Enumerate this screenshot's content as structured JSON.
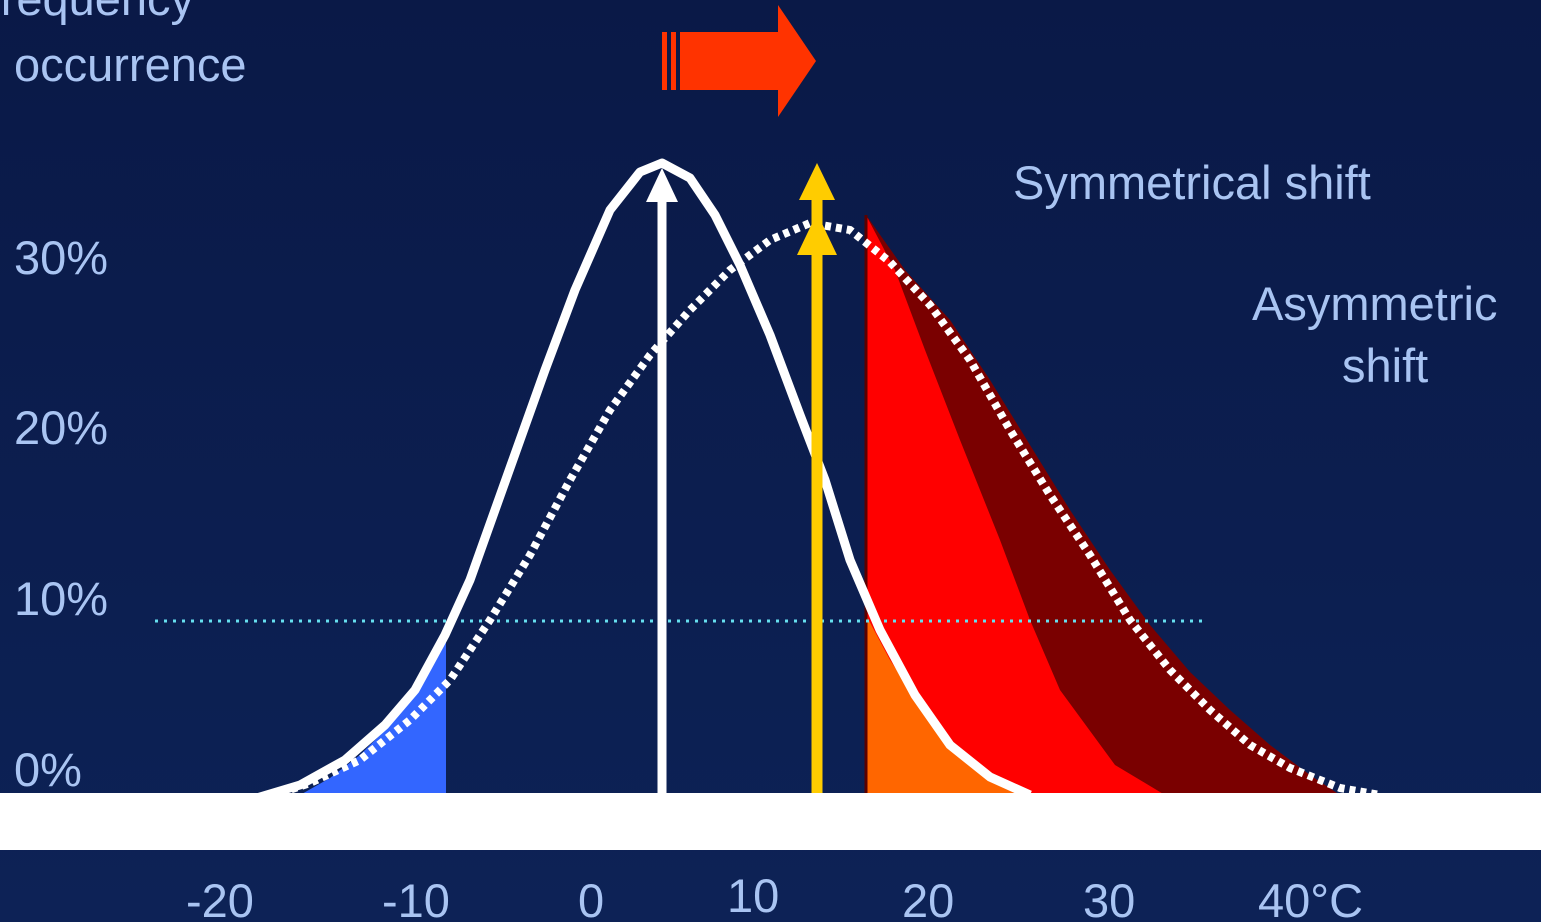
{
  "ylabel": [
    "Frequency",
    "occurrence"
  ],
  "y_ticks": [
    "30%",
    "20%",
    "10%",
    "0%"
  ],
  "x_ticks": [
    "-20",
    "-10",
    "0",
    "10",
    "20",
    "30",
    "40°C"
  ],
  "annotations": {
    "symmetrical": "Symmetrical shift",
    "asymmetric": [
      "Asymmetric",
      "shift"
    ]
  },
  "colors": {
    "background": "#0b1c4e",
    "text": "#a9c4f2",
    "curve": "#ffffff",
    "shift_arrow": "#ff3300",
    "new_mean": "#ffcc00",
    "cold_tail": "#3366ff",
    "hot_tail_old": "#ff6600",
    "hot_tail_symmetric": "#ff0000",
    "hot_tail_asymmetric": "#7a0000",
    "threshold": "#66e0f0",
    "baseline_band": "#ffffff"
  },
  "icons": {
    "shift_arrow": "right-arrow-icon"
  }
}
